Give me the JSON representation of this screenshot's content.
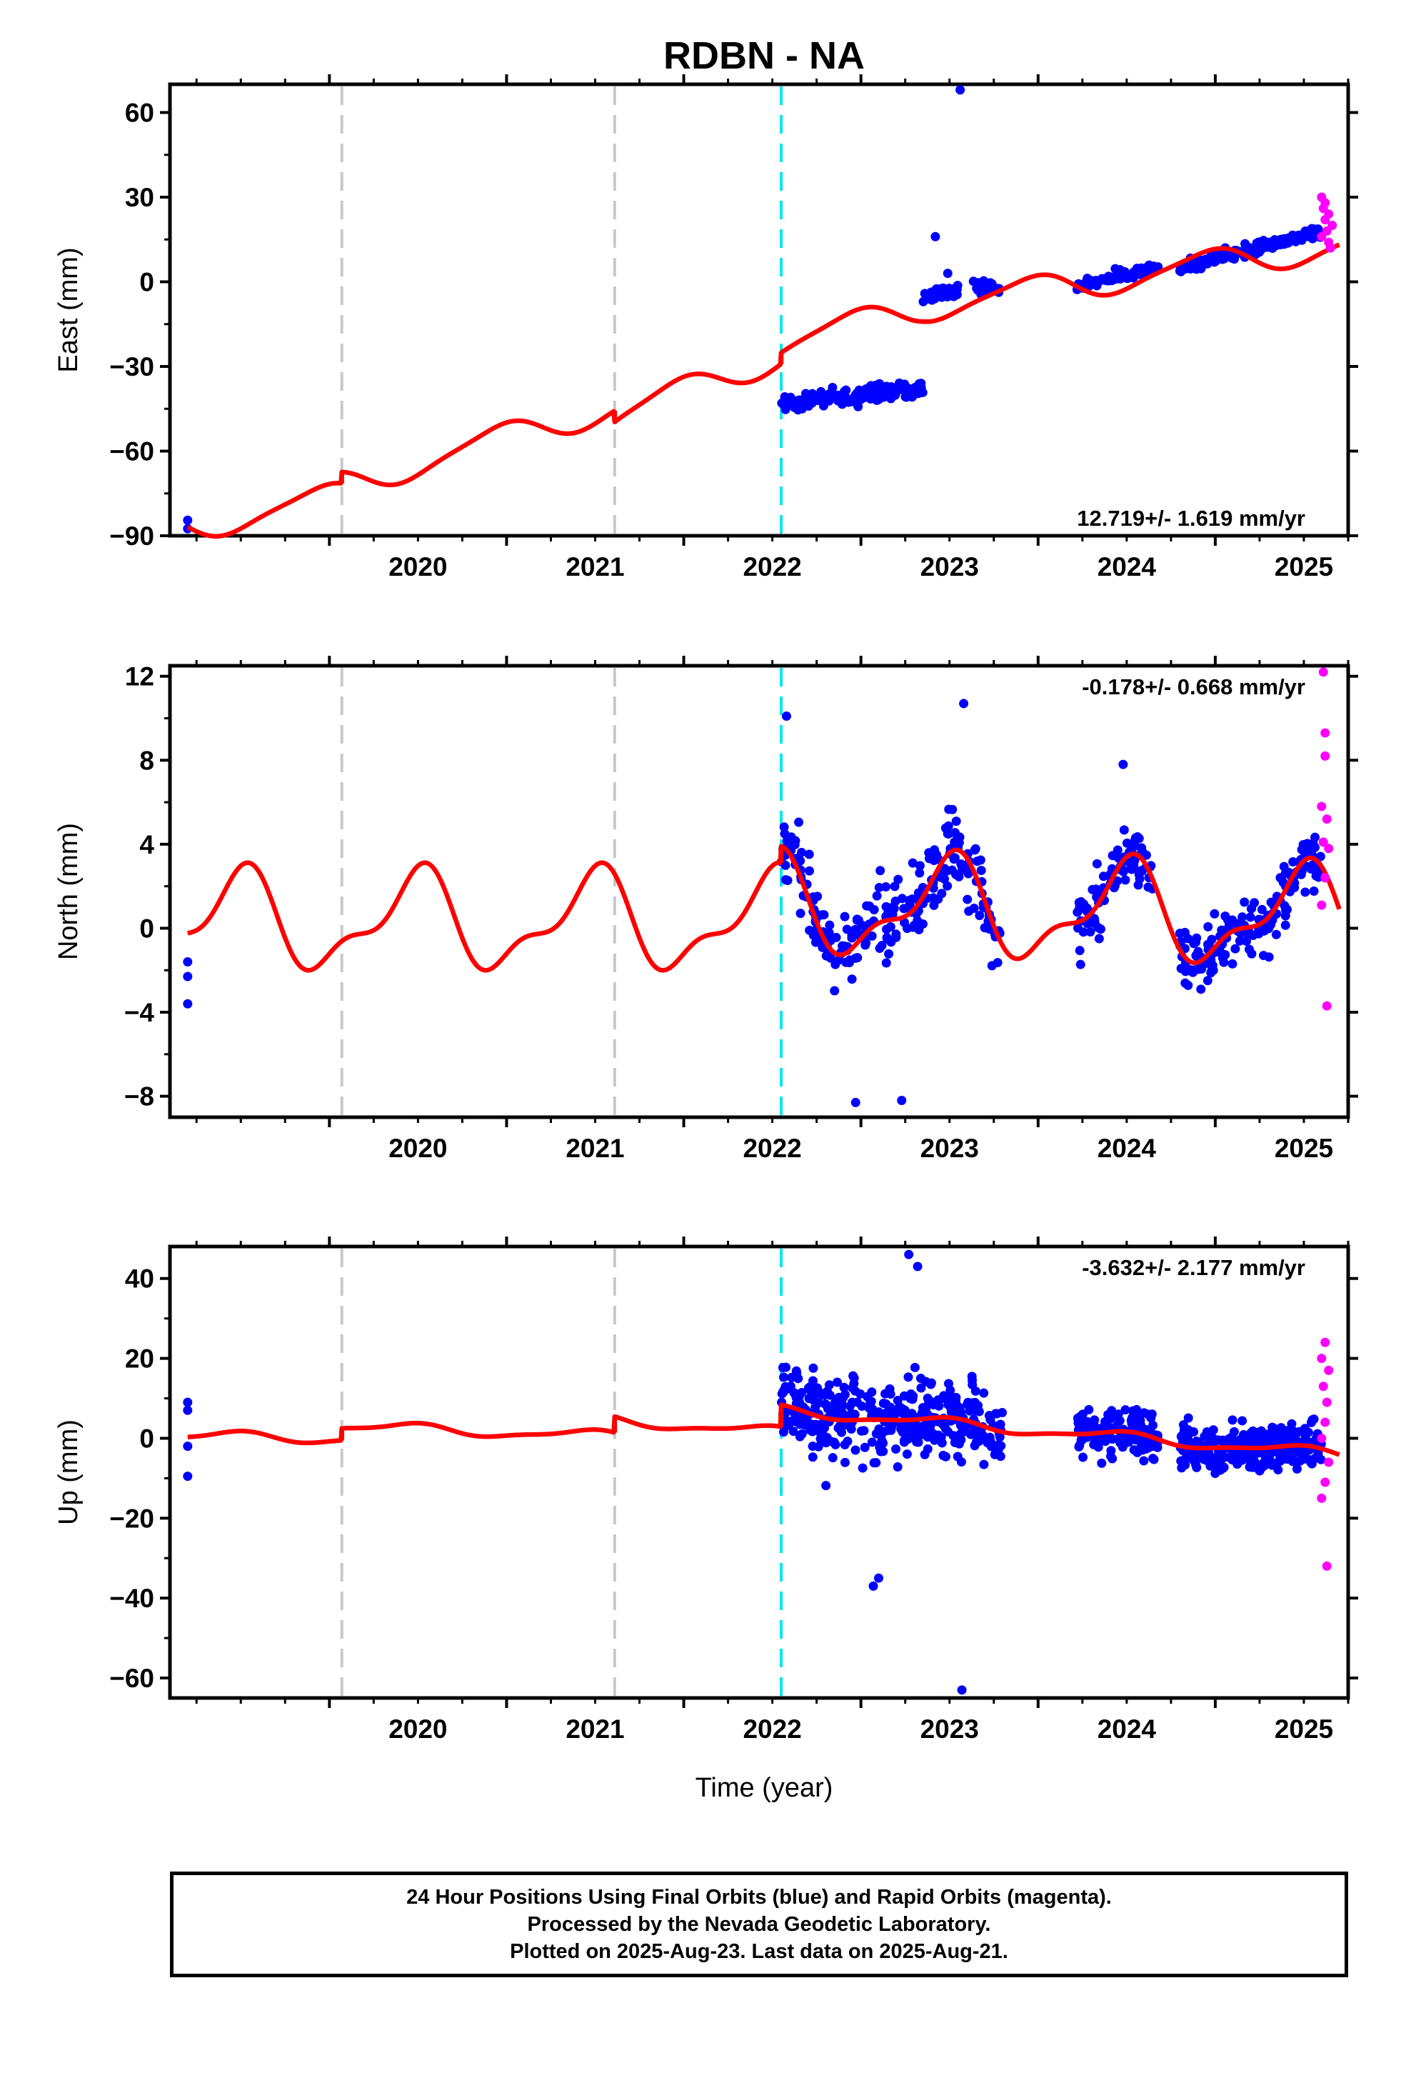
{
  "title": "RDBN - NA",
  "x_label": "Time (year)",
  "footer": {
    "line1": "24 Hour Positions Using Final Orbits (blue) and Rapid Orbits (magenta).",
    "line2": "Processed by the Nevada Geodetic Laboratory.",
    "line3": "Plotted on 2025-Aug-23. Last data on 2025-Aug-21."
  },
  "colors": {
    "final_orbits": "#0000ff",
    "rapid_orbits": "#ff00ff",
    "model_fit": "#ff0000",
    "equipment_change": "#c8c8c8",
    "earthquake": "#00e5ee"
  },
  "chart_data": [
    {
      "type": "scatter",
      "name": "east",
      "ylabel": "East (mm)",
      "rate_label": "12.719+/- 1.619 mm/yr",
      "rate_position": "bottom-right",
      "xlim": [
        2019.1,
        2025.75
      ],
      "ylim": [
        -90,
        70
      ],
      "yticks": [
        60,
        30,
        0,
        -30,
        -60,
        -90
      ],
      "xticks": [
        2020,
        2021,
        2022,
        2023,
        2024,
        2025
      ],
      "grid": false,
      "gray_lines": [
        2020.07,
        2021.61
      ],
      "cyan_lines": [
        2022.55
      ],
      "fit": {
        "trend": [
          [
            2019.2,
            -87
          ],
          [
            2020.07,
            -76
          ],
          [
            2020.07,
            -72
          ],
          [
            2021.61,
            -44
          ],
          [
            2021.61,
            -48
          ],
          [
            2022.55,
            -26
          ],
          [
            2022.55,
            -22
          ],
          [
            2023.35,
            -9
          ],
          [
            2025.7,
            13
          ]
        ],
        "season_amp": 5,
        "season_phase": 1.9,
        "semi_amp": 1,
        "semi_phase": 0.5
      },
      "blue_segments": [
        {
          "pts": [
            [
              2019.2,
              -84.5
            ],
            [
              2019.2,
              -87.5
            ]
          ]
        },
        {
          "from": 2022.55,
          "to": 2023.35,
          "n": 160,
          "y0": -43,
          "y1": -38,
          "noise": 2.5
        },
        {
          "from": 2023.35,
          "to": 2023.55,
          "n": 35,
          "y0": -6,
          "y1": -2,
          "noise": 2.5
        },
        {
          "from": 2023.62,
          "to": 2023.78,
          "n": 25,
          "y0": -1,
          "y1": -3,
          "noise": 2
        },
        {
          "from": 2024.22,
          "to": 2024.68,
          "n": 60,
          "y0": -1,
          "y1": 5,
          "noise": 1.8
        },
        {
          "from": 2024.8,
          "to": 2025.6,
          "n": 170,
          "y0": 5,
          "y1": 18,
          "noise": 2
        },
        {
          "pts": [
            [
              2023.56,
              68
            ],
            [
              2023.42,
              16
            ],
            [
              2023.49,
              3
            ]
          ]
        }
      ],
      "magenta_points": [
        [
          2025.6,
          30
        ],
        [
          2025.61,
          26
        ],
        [
          2025.62,
          22
        ],
        [
          2025.63,
          18
        ],
        [
          2025.64,
          14
        ],
        [
          2025.65,
          12
        ],
        [
          2025.62,
          28
        ],
        [
          2025.64,
          24
        ],
        [
          2025.66,
          20
        ],
        [
          2025.6,
          16
        ]
      ]
    },
    {
      "type": "scatter",
      "name": "north",
      "ylabel": "North (mm)",
      "rate_label": "-0.178+/- 0.668 mm/yr",
      "rate_position": "top-right",
      "xlim": [
        2019.1,
        2025.75
      ],
      "ylim": [
        -9,
        12.5
      ],
      "yticks": [
        12,
        8,
        4,
        0,
        -4,
        -8
      ],
      "xticks": [
        2020,
        2021,
        2022,
        2023,
        2024,
        2025
      ],
      "grid": false,
      "gray_lines": [
        2020.07,
        2021.61
      ],
      "cyan_lines": [
        2022.55
      ],
      "fit": {
        "trend": [
          [
            2019.2,
            0.3
          ],
          [
            2022.55,
            0.3
          ],
          [
            2022.55,
            1.1
          ],
          [
            2025.7,
            0.5
          ]
        ],
        "season_amp": 2.1,
        "season_phase": 4.8,
        "semi_amp": 0.9,
        "semi_phase": 0.7
      },
      "blue_segments": [
        {
          "pts": [
            [
              2019.2,
              -1.6
            ],
            [
              2019.2,
              -2.3
            ],
            [
              2019.2,
              -3.6
            ]
          ]
        },
        {
          "from": 2022.55,
          "to": 2023.8,
          "n": 240,
          "follow_fit": true,
          "noise": 1.6
        },
        {
          "from": 2024.22,
          "to": 2024.65,
          "n": 90,
          "follow_fit": true,
          "noise": 1.2
        },
        {
          "from": 2024.8,
          "to": 2025.6,
          "n": 170,
          "follow_fit": true,
          "noise": 1.1
        },
        {
          "pts": [
            [
              2023.58,
              10.7
            ],
            [
              2022.58,
              10.1
            ],
            [
              2023.23,
              -8.2
            ],
            [
              2022.97,
              -8.3
            ],
            [
              2024.48,
              7.8
            ]
          ]
        }
      ],
      "magenta_points": [
        [
          2025.61,
          12.2
        ],
        [
          2025.62,
          9.3
        ],
        [
          2025.62,
          8.2
        ],
        [
          2025.6,
          5.8
        ],
        [
          2025.63,
          5.2
        ],
        [
          2025.61,
          4.1
        ],
        [
          2025.64,
          3.8
        ],
        [
          2025.62,
          2.4
        ],
        [
          2025.6,
          1.1
        ],
        [
          2025.63,
          -3.7
        ]
      ]
    },
    {
      "type": "scatter",
      "name": "up",
      "ylabel": "Up (mm)",
      "rate_label": "-3.632+/- 2.177 mm/yr",
      "rate_position": "top-right",
      "xlim": [
        2019.1,
        2025.75
      ],
      "ylim": [
        -65,
        48
      ],
      "yticks": [
        40,
        20,
        0,
        -20,
        -40,
        -60
      ],
      "xticks": [
        2020,
        2021,
        2022,
        2023,
        2024,
        2025
      ],
      "grid": false,
      "gray_lines": [
        2020.07,
        2021.61
      ],
      "cyan_lines": [
        2022.55
      ],
      "fit": {
        "trend": [
          [
            2019.2,
            0.5
          ],
          [
            2020.07,
            0.0
          ],
          [
            2020.07,
            3.0
          ],
          [
            2021.61,
            0.5
          ],
          [
            2021.61,
            4.5
          ],
          [
            2022.55,
            1.5
          ],
          [
            2022.55,
            7.0
          ],
          [
            2025.7,
            -4.0
          ]
        ],
        "season_amp": 1.2,
        "season_phase": 5.0,
        "semi_amp": 0.4,
        "semi_phase": 1.0
      },
      "blue_segments": [
        {
          "pts": [
            [
              2019.2,
              9
            ],
            [
              2019.2,
              7
            ],
            [
              2019.2,
              -2
            ],
            [
              2019.2,
              -9.5
            ]
          ]
        },
        {
          "from": 2022.55,
          "to": 2023.8,
          "n": 380,
          "follow_fit": true,
          "noise": 8
        },
        {
          "from": 2024.22,
          "to": 2024.68,
          "n": 160,
          "follow_fit": true,
          "noise": 4.5
        },
        {
          "from": 2024.8,
          "to": 2025.6,
          "n": 320,
          "follow_fit": true,
          "noise": 4.5
        },
        {
          "pts": [
            [
              2023.27,
              46
            ],
            [
              2023.32,
              43
            ],
            [
              2023.07,
              -37
            ],
            [
              2023.1,
              -35
            ],
            [
              2023.57,
              -63
            ]
          ]
        }
      ],
      "magenta_points": [
        [
          2025.62,
          24
        ],
        [
          2025.6,
          20
        ],
        [
          2025.64,
          17
        ],
        [
          2025.61,
          13
        ],
        [
          2025.63,
          9
        ],
        [
          2025.62,
          4
        ],
        [
          2025.6,
          0
        ],
        [
          2025.64,
          -6
        ],
        [
          2025.62,
          -11
        ],
        [
          2025.6,
          -15
        ],
        [
          2025.63,
          -32
        ]
      ]
    }
  ]
}
